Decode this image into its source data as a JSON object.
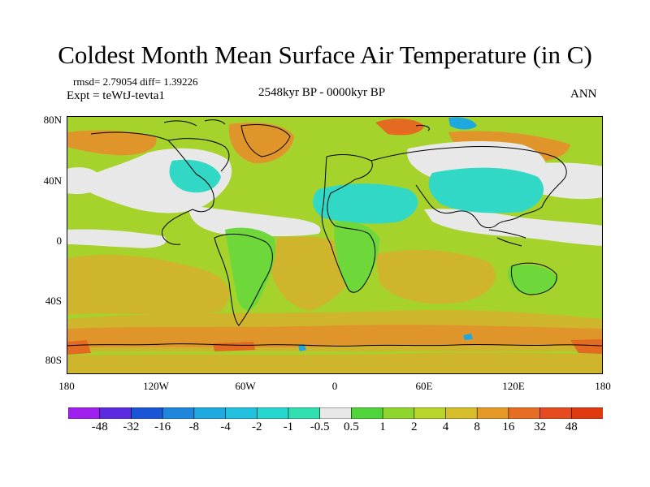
{
  "title": "Coldest Month Mean Surface Air Temperature (in C)",
  "stats": "rmsd= 2.79054 diff= 1.39226",
  "experiment": "Expt = teWtJ-tevta1",
  "period": "2548kyr BP - 0000kyr BP",
  "season": "ANN",
  "lat_labels": [
    "80N",
    "40N",
    "0",
    "40S",
    "80S"
  ],
  "lon_labels": [
    "180",
    "120W",
    "60W",
    "0",
    "60E",
    "120E",
    "180"
  ],
  "colorbar": {
    "levels": [
      "-48",
      "-32",
      "-16",
      "-8",
      "-4",
      "-2",
      "-1",
      "-0.5",
      "0.5",
      "1",
      "2",
      "4",
      "8",
      "16",
      "32",
      "48"
    ],
    "colors": [
      "#a020f0",
      "#5a2be0",
      "#1a55d8",
      "#1e86dd",
      "#1ea9e2",
      "#22c1df",
      "#24d8cf",
      "#30e0b0",
      "#e8e8e8",
      "#4fd43a",
      "#8ed52e",
      "#b7d52a",
      "#d6bd2a",
      "#e59a28",
      "#e86d24",
      "#e64a1e",
      "#e03a10"
    ]
  },
  "colors": {
    "ocean_base": "#a6d22c",
    "warm": "#cfb52c",
    "warmer": "#e0952a",
    "hot": "#e46a22",
    "neutral": "#e8e8e8",
    "cool": "#32d8c6",
    "cooler": "#1ea8e0",
    "land_green": "#6ed83a",
    "coast": "#000000"
  }
}
